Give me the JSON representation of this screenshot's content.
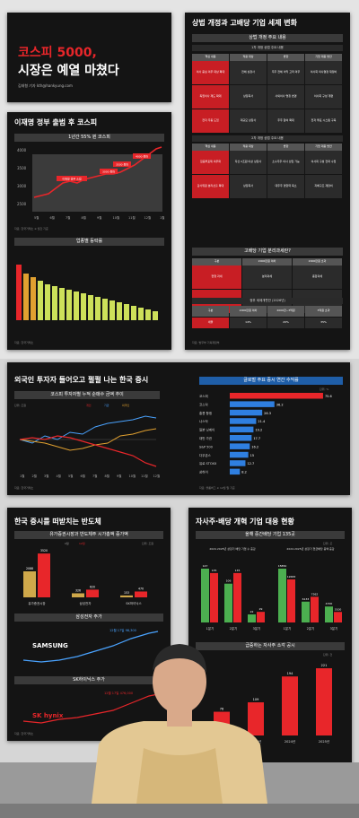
{
  "hero": {
    "line1": "코스피 5000,",
    "line2": "시장은 예열 마쳤다",
    "byline": "김태형 기자 kth@hankyung.com"
  },
  "kospi_panel": {
    "title": "이재명 정부 출범 후 코스피",
    "subtitle": "1년간 55% 뛴 코스피",
    "note": "자료: 한국거래소  ※ 월간 기준",
    "events": [
      "3000 돌파",
      "3500 돌파",
      "4000 돌파",
      "이재명 정부 출범"
    ],
    "y_ticks": [
      "4000",
      "3500",
      "3000",
      "2500"
    ],
    "x_ticks": [
      "5월",
      "6월",
      "7월",
      "8월",
      "9월",
      "10월",
      "11월",
      "12월",
      "1월"
    ]
  },
  "sector_panel": {
    "title": "업종별 등락률",
    "note": "자료: 한국거래소"
  },
  "law_panel": {
    "title": "상법 개정과 고배당 기업 세제 변화",
    "t1_title": "상법 개정 주요 내용",
    "t1_sub1": "1차 개정 상법 주요 내용",
    "t1_headers": [
      "핵심 내용",
      "적용 대상",
      "방향",
      "기업 대응 방안"
    ],
    "t1_rows": [
      [
        "이사 충실 의무 대상 확대",
        "전체 상장사",
        "주주 전체 이익 고려 의무",
        "이사회 의사결정 재정비"
      ],
      [
        "독립이사 제도 확대",
        "상장회사",
        "사외이사 명칭 변경",
        "이사회 구성 개편"
      ],
      [
        "전자 주총 도입",
        "대규모 상장사",
        "주주 참여 확대",
        "전자 투표 시스템 구축"
      ]
    ],
    "t1_sub2": "2차 개정 상법 주요 내용",
    "t1_rows2": [
      [
        "집중투표제 의무화",
        "자산 2조원 이상 상장사",
        "소수주주 이사 선임 가능",
        "이사회 구성 전략 수립"
      ],
      [
        "감사위원 분리선출 확대",
        "상장회사",
        "대주주 영향력 축소",
        "지배구조 재정비"
      ]
    ],
    "t2_title": "고배당 기업 분리과세란?",
    "t2_rows": [
      [
        "구분",
        "2000만원 이하",
        "2000만원 초과"
      ],
      [
        "현행 과세",
        "분리과세",
        "종합과세"
      ],
      [
        "개정",
        "14%(지방세 포함 15.4%)",
        "분리과세 14~30%"
      ]
    ],
    "t2_sub": "정부 세제개편안 (2026년)",
    "t2_rows2": [
      [
        "구분",
        "2000만원 이하",
        "2000만~3억원",
        "3억원 초과"
      ],
      [
        "세율",
        "14%",
        "20%",
        "35%"
      ]
    ],
    "note": "자료: 법무부·기획재정부"
  },
  "foreign_panel": {
    "title": "외국인 투자자 들어오고 펄펄 나는 한국 증시",
    "subtitle": "코스피 투자자별 누적 순매수 금액 추이",
    "legend": [
      "개인",
      "기관",
      "외국인"
    ],
    "unit": "단위: 조원",
    "x_ticks": [
      "1월",
      "2월",
      "3월",
      "4월",
      "5월",
      "6월",
      "7월",
      "8월",
      "9월",
      "10월",
      "11월",
      "12월"
    ],
    "note": "자료: 한국거래소"
  },
  "returns_panel": {
    "title": "글로벌 주요 증시 연간 수익률",
    "unit": "단위: %",
    "chart_data": {
      "type": "bar",
      "categories": [
        "코스피",
        "코스닥",
        "홍콩 항셍",
        "나스닥",
        "일본 닛케이",
        "대만 가권",
        "S&P 500",
        "다우존스",
        "유로 STOXX",
        "상하이"
      ],
      "values": [
        75.6,
        36.2,
        26.3,
        21.4,
        19.2,
        17.7,
        16.2,
        15.0,
        12.7,
        8.2
      ]
    },
    "note": "자료: 블룸버그  ※ 12월 말 기준"
  },
  "semi_panel": {
    "title": "한국 증시를 떠받치는 반도체",
    "sub1": "유가증권시장과 반도체주 시가총액 증가액",
    "legend": [
      "1월",
      "12월"
    ],
    "unit": "단위: 조원",
    "chart_data": {
      "type": "bar",
      "categories": [
        "유가증권시장",
        "삼성전자",
        "SK하이닉스"
      ],
      "series": [
        {
          "name": "1월",
          "values": [
            2088,
            326,
            153
          ]
        },
        {
          "name": "12월",
          "values": [
            3520,
            620,
            470
          ]
        }
      ]
    },
    "sub2": "삼성전자 주가",
    "samsung_label": "SAMSUNG",
    "samsung_high": "12월 17일 98,300",
    "sub3": "SK하이닉스 주가",
    "hynix_label": "SK hynix",
    "hynix_high": "12월 17일 476,000",
    "x_ticks": [
      "1월",
      "3월",
      "5월",
      "7월",
      "9월",
      "11월"
    ],
    "note": "자료: 한국거래소"
  },
  "buyback_panel": {
    "title": "자사주·배당 개혁 기업 대응 현황",
    "sub1": "올해 중간배당 기업 135곳",
    "unit": "단위: 곳",
    "group1": "2024·2025년 상장기 배당 기업 수 증감",
    "group2": "2024·2025년 상장기 현금배당 총액 증감",
    "chart_data": [
      {
        "type": "bar",
        "categories": [
          "1분기",
          "2분기",
          "3분기"
        ],
        "series": [
          {
            "name": "2024",
            "values": [
              147,
              106,
              22
            ]
          },
          {
            "name": "2025",
            "values": [
              135,
              135,
              29
            ]
          }
        ]
      },
      {
        "type": "bar",
        "categories": [
          "1분기",
          "2분기",
          "3분기"
        ],
        "series": [
          {
            "name": "2024",
            "values": [
              15850,
              6133,
              4700
            ]
          },
          {
            "name": "2025",
            "values": [
              12683,
              7562,
              3100
            ]
          }
        ]
      },
      {
        "type": "bar",
        "categories": [
          "2022년",
          "2023년",
          "2024년",
          "2025년"
        ],
        "values": [
          78,
          109,
          194,
          221
        ]
      }
    ],
    "sub2": "급증하는 자사주 소각 공시",
    "unit2": "단위: 건",
    "note": "자료: 한국거래소"
  }
}
